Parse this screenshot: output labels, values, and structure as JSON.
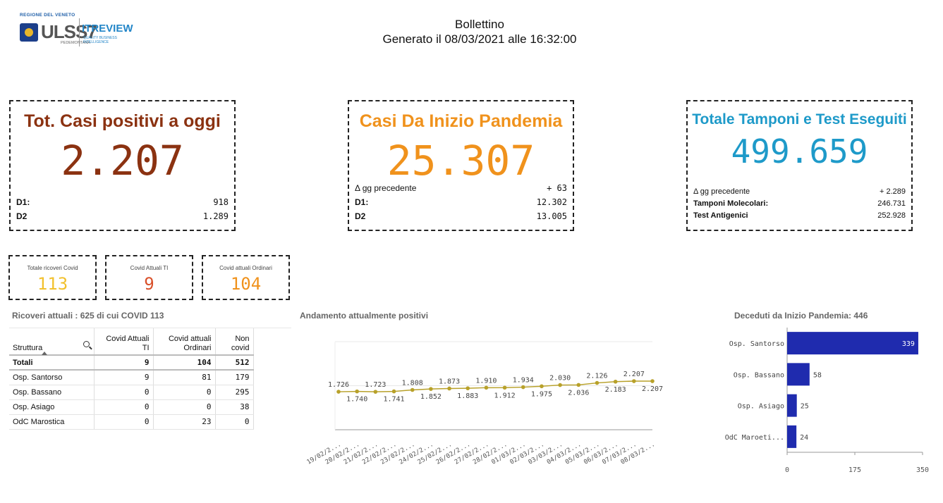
{
  "header": {
    "logo": {
      "region": "REGIONE DEL VENETO",
      "ulss": "ULSS7",
      "ulss_sub": "PEDEMONTANA",
      "brand": "ITREVIEW",
      "brand_sub": "QUALITY BUSINESS INTELLIGENCE"
    },
    "title": "Bollettino",
    "generated": "Generato il 08/03/2021 alle 16:32:00"
  },
  "kpi_positivi": {
    "title": "Tot. Casi positivi a oggi",
    "value": "2.207",
    "rows": [
      {
        "label": "D1:",
        "value": "918"
      },
      {
        "label": "D2",
        "value": "1.289"
      }
    ]
  },
  "kpi_pandemia": {
    "title": "Casi Da Inizio Pandemia",
    "value": "25.307",
    "rows": [
      {
        "label": "Δ gg precedente",
        "value": "+ 63"
      },
      {
        "label": "D1:",
        "value": "12.302"
      },
      {
        "label": "D2",
        "value": "13.005"
      }
    ]
  },
  "kpi_tamponi": {
    "title": "Totale Tamponi e Test Eseguiti",
    "value": "499.659",
    "rows": [
      {
        "label": "Δ gg precedente",
        "value": "+ 2.289"
      },
      {
        "label": "Tamponi Molecolari:",
        "value": "246.731"
      },
      {
        "label": "Test Antigenici",
        "value": "252.928"
      }
    ]
  },
  "mini": [
    {
      "title": "Totale ricoveri Covid",
      "value": "113",
      "color": "#f2c12e"
    },
    {
      "title": "Covid Attuali TI",
      "value": "9",
      "color": "#d9502a"
    },
    {
      "title": "Covid attuali Ordinari",
      "value": "104",
      "color": "#f0921c"
    }
  ],
  "ricoveri": {
    "title": "Ricoveri attuali : 625 di cui COVID 113",
    "headers": [
      "Struttura",
      "Covid Attuali TI",
      "Covid attuali Ordinari",
      "Non covid"
    ],
    "totals": [
      "Totali",
      "9",
      "104",
      "512"
    ],
    "rows": [
      [
        "Osp. Santorso",
        "9",
        "81",
        "179"
      ],
      [
        "Osp. Bassano",
        "0",
        "0",
        "295"
      ],
      [
        "Osp. Asiago",
        "0",
        "0",
        "38"
      ],
      [
        "OdC Marostica",
        "0",
        "23",
        "0"
      ]
    ]
  },
  "chart_data": [
    {
      "type": "line",
      "title": "Andamento attualmente positivi",
      "x": [
        "19/02/2...",
        "20/02/2...",
        "21/02/2...",
        "22/02/2...",
        "23/02/2...",
        "24/02/2...",
        "25/02/2...",
        "26/02/2...",
        "27/02/2...",
        "28/02/2...",
        "01/03/2...",
        "02/03/2...",
        "03/03/2...",
        "04/03/2...",
        "05/03/2...",
        "06/03/2...",
        "07/03/2...",
        "08/03/2..."
      ],
      "values": [
        1726,
        1740,
        1723,
        1741,
        1808,
        1852,
        1873,
        1883,
        1910,
        1912,
        1934,
        1975,
        2030,
        2036,
        2126,
        2183,
        2207,
        2207
      ],
      "labels": [
        "1.726",
        "1.740",
        "1.723",
        "1.741",
        "1.808",
        "1.852",
        "1.873",
        "1.883",
        "1.910",
        "1.912",
        "1.934",
        "1.975",
        "2.030",
        "2.036",
        "2.126",
        "2.183",
        "2.207",
        "2.207"
      ],
      "ylim": [
        0,
        4000
      ],
      "color": "#b8a12a"
    },
    {
      "type": "bar",
      "orientation": "horizontal",
      "title": "Deceduti da Inizio Pandemia: 446",
      "categories": [
        "Osp. Santorso",
        "Osp. Bassano",
        "Osp. Asiago",
        "OdC Maroeti..."
      ],
      "values": [
        339,
        58,
        25,
        24
      ],
      "xlim": [
        0,
        350
      ],
      "ticks": [
        "0",
        "175",
        "350"
      ],
      "color": "#1f2bae"
    }
  ]
}
